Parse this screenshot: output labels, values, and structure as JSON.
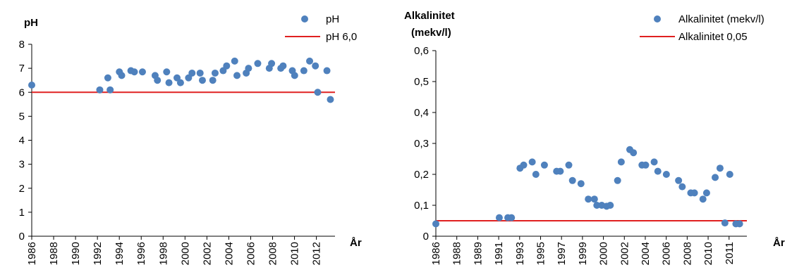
{
  "colors": {
    "point": "#4F81BD",
    "threshold": "#E02020",
    "axis": "#000000"
  },
  "chart_data": [
    {
      "type": "scatter",
      "title": "pH",
      "xlabel": "År",
      "ylabel": "",
      "ylim": [
        0,
        8
      ],
      "yticks": [
        "0",
        "1",
        "2",
        "3",
        "4",
        "5",
        "6",
        "7",
        "8"
      ],
      "xticks": [
        "1986",
        "1988",
        "1990",
        "1992",
        "1994",
        "1996",
        "1998",
        "2000",
        "2002",
        "2004",
        "2006",
        "2008",
        "2010",
        "2012"
      ],
      "legend": {
        "position": "top-right",
        "items": [
          "pH",
          "pH 6,0"
        ]
      },
      "threshold": {
        "name": "pH 6,0",
        "value": 6.0
      },
      "series": [
        {
          "name": "pH",
          "x": [
            1986.0,
            1991.9,
            1992.6,
            1992.8,
            1993.6,
            1993.8,
            1994.6,
            1994.9,
            1995.6,
            1996.7,
            1996.9,
            1997.7,
            1997.9,
            1998.6,
            1998.9,
            1999.6,
            1999.9,
            2000.6,
            2000.8,
            2001.7,
            2001.9,
            2002.6,
            2002.9,
            2003.6,
            2003.8,
            2004.6,
            2004.8,
            2005.6,
            2006.6,
            2006.8,
            2007.6,
            2007.8,
            2008.6,
            2008.8,
            2009.6,
            2010.1,
            2010.6,
            2010.8,
            2011.6,
            2011.9
          ],
          "y": [
            6.3,
            6.1,
            6.6,
            6.1,
            6.85,
            6.7,
            6.9,
            6.85,
            6.85,
            6.7,
            6.5,
            6.85,
            6.4,
            6.6,
            6.4,
            6.6,
            6.8,
            6.8,
            6.5,
            6.5,
            6.8,
            6.9,
            7.1,
            7.3,
            6.7,
            6.8,
            7.0,
            7.2,
            7.0,
            7.2,
            7.0,
            7.1,
            6.9,
            6.7,
            6.9,
            7.3,
            7.1,
            6.0,
            6.9,
            5.7
          ]
        }
      ]
    },
    {
      "type": "scatter",
      "title": "Alkalinitet (mekv/l)",
      "title_lines": [
        "Alkalinitet",
        "(mekv/l)"
      ],
      "xlabel": "År",
      "ylabel": "",
      "ylim": [
        0,
        0.6
      ],
      "yticks": [
        "0",
        "0,1",
        "0,2",
        "0,3",
        "0,4",
        "0,5",
        "0,6"
      ],
      "xticks": [
        "1986",
        "1988",
        "1989",
        "1991",
        "1993",
        "1995",
        "1997",
        "1999",
        "2000",
        "2002",
        "2004",
        "2006",
        "2008",
        "2010",
        "2011"
      ],
      "legend": {
        "position": "top-right",
        "items": [
          "Alkalinitet (mekv/l)",
          "Alkalinitet 0,05"
        ]
      },
      "threshold": {
        "name": "Alkalinitet 0,05",
        "value": 0.05
      },
      "series": [
        {
          "name": "Alkalinitet (mekv/l)",
          "x": [
            1986.0,
            1991.2,
            1991.9,
            1992.2,
            1992.9,
            1993.2,
            1993.9,
            1994.2,
            1994.9,
            1995.9,
            1996.2,
            1996.9,
            1997.2,
            1997.9,
            1998.5,
            1999.0,
            1999.2,
            1999.6,
            2000.0,
            2000.3,
            2000.9,
            2001.2,
            2001.9,
            2002.2,
            2002.9,
            2003.2,
            2003.9,
            2004.2,
            2004.9,
            2005.9,
            2006.2,
            2006.9,
            2007.2,
            2007.9,
            2008.2,
            2008.9,
            2009.3,
            2009.7,
            2010.1,
            2010.6,
            2010.9
          ],
          "y": [
            0.04,
            0.06,
            0.06,
            0.06,
            0.22,
            0.23,
            0.24,
            0.2,
            0.23,
            0.21,
            0.21,
            0.23,
            0.18,
            0.17,
            0.12,
            0.12,
            0.1,
            0.1,
            0.097,
            0.1,
            0.18,
            0.24,
            0.28,
            0.27,
            0.23,
            0.23,
            0.24,
            0.21,
            0.2,
            0.18,
            0.16,
            0.14,
            0.14,
            0.12,
            0.14,
            0.19,
            0.22,
            0.043,
            0.2,
            0.04,
            0.04
          ]
        }
      ]
    }
  ]
}
